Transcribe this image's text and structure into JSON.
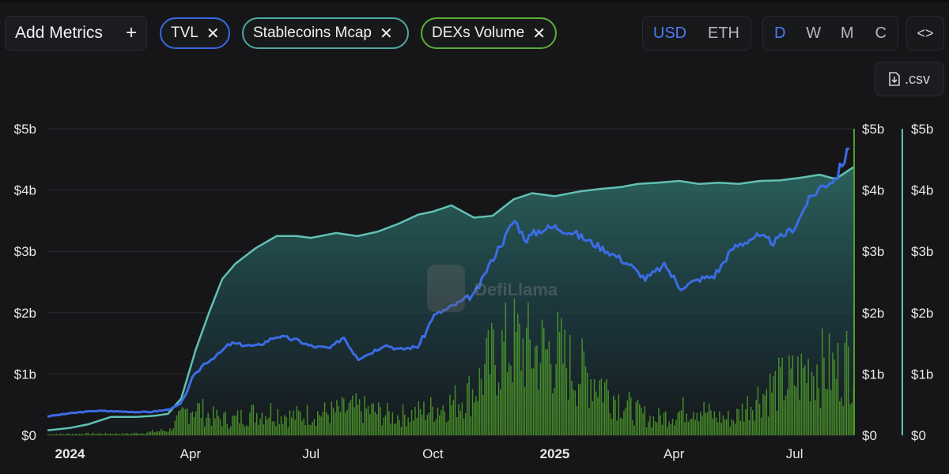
{
  "toolbar": {
    "add_metrics_label": "Add Metrics",
    "add_icon": "plus-icon",
    "chips": [
      {
        "label": "TVL",
        "color": "#3a68e0",
        "close_icon": "close-icon"
      },
      {
        "label": "Stablecoins Mcap",
        "color": "#4fa9a2",
        "close_icon": "close-icon"
      },
      {
        "label": "DEXs Volume",
        "color": "#5cae3a",
        "close_icon": "close-icon"
      }
    ],
    "currency": {
      "options": [
        "USD",
        "ETH"
      ],
      "selected": "USD"
    },
    "granularity": {
      "options": [
        "D",
        "W",
        "M",
        "C"
      ],
      "selected": "D"
    },
    "embed_icon": "code-icon",
    "csv_label": ".csv",
    "csv_icon": "download-file-icon"
  },
  "watermark": "DefiLlama",
  "colors": {
    "background": "#161618",
    "tvl": "#3c6ce6",
    "stablecoins": "#62c0b4",
    "dex": "#4f9e2c",
    "accent": "#4b7bf5"
  },
  "chart_data": {
    "type": "line",
    "x_ticks": [
      "2024",
      "Apr",
      "Jul",
      "Oct",
      "2025",
      "Apr",
      "Jul"
    ],
    "x_tick_bold": [
      true,
      false,
      false,
      false,
      true,
      false,
      false
    ],
    "y_left_ticks": [
      "$5b",
      "$4b",
      "$3b",
      "$2b",
      "$1b",
      "$0"
    ],
    "y_right_ticks": [
      "$5b",
      "$4b",
      "$3b",
      "$2b",
      "$1b",
      "$0"
    ],
    "y_right2_ticks": [
      "$5b",
      "$4b",
      "$3b",
      "$2b",
      "$1b",
      "$0"
    ],
    "ylim": [
      0,
      5
    ],
    "x_range": [
      "2023-12-15",
      "2025-08-15"
    ],
    "grid": true,
    "series": [
      {
        "name": "TVL",
        "kind": "line",
        "x": [
          "2023-12-15",
          "2024-01-01",
          "2024-01-20",
          "2024-02-05",
          "2024-02-20",
          "2024-03-01",
          "2024-03-15",
          "2024-03-25",
          "2024-04-01",
          "2024-04-10",
          "2024-04-20",
          "2024-05-01",
          "2024-05-20",
          "2024-06-05",
          "2024-06-20",
          "2024-07-01",
          "2024-07-15",
          "2024-07-25",
          "2024-08-05",
          "2024-08-15",
          "2024-08-25",
          "2024-09-05",
          "2024-09-20",
          "2024-10-01",
          "2024-10-15",
          "2024-11-01",
          "2024-11-15",
          "2024-12-01",
          "2024-12-10",
          "2024-12-20",
          "2025-01-01",
          "2025-01-15",
          "2025-02-01",
          "2025-02-10",
          "2025-02-25",
          "2025-03-10",
          "2025-03-25",
          "2025-04-05",
          "2025-04-20",
          "2025-05-01",
          "2025-05-15",
          "2025-06-01",
          "2025-06-15",
          "2025-07-01",
          "2025-07-10",
          "2025-07-20",
          "2025-08-01",
          "2025-08-10",
          "2025-08-15"
        ],
        "values": [
          0.31,
          0.36,
          0.4,
          0.39,
          0.38,
          0.38,
          0.42,
          0.52,
          0.9,
          1.15,
          1.3,
          1.5,
          1.45,
          1.62,
          1.55,
          1.45,
          1.42,
          1.6,
          1.25,
          1.35,
          1.48,
          1.4,
          1.45,
          1.95,
          2.1,
          2.3,
          2.9,
          3.5,
          3.2,
          3.35,
          3.4,
          3.3,
          3.1,
          3.0,
          2.8,
          2.55,
          2.78,
          2.4,
          2.55,
          2.6,
          3.05,
          3.25,
          3.15,
          3.4,
          3.8,
          4.05,
          4.2,
          4.65,
          4.9
        ]
      },
      {
        "name": "Stablecoins Mcap",
        "kind": "area",
        "x": [
          "2023-12-15",
          "2024-01-01",
          "2024-01-15",
          "2024-02-01",
          "2024-02-20",
          "2024-03-05",
          "2024-03-15",
          "2024-03-25",
          "2024-04-05",
          "2024-04-15",
          "2024-04-25",
          "2024-05-05",
          "2024-05-20",
          "2024-06-05",
          "2024-06-20",
          "2024-07-01",
          "2024-07-20",
          "2024-08-05",
          "2024-08-20",
          "2024-09-05",
          "2024-09-20",
          "2024-10-01",
          "2024-10-15",
          "2024-11-01",
          "2024-11-15",
          "2024-12-01",
          "2024-12-15",
          "2025-01-01",
          "2025-01-20",
          "2025-02-05",
          "2025-02-20",
          "2025-03-05",
          "2025-03-20",
          "2025-04-05",
          "2025-04-20",
          "2025-05-05",
          "2025-05-20",
          "2025-06-05",
          "2025-06-20",
          "2025-07-05",
          "2025-07-20",
          "2025-08-01",
          "2025-08-15"
        ],
        "values": [
          0.08,
          0.12,
          0.18,
          0.3,
          0.3,
          0.32,
          0.35,
          0.6,
          1.4,
          2.0,
          2.55,
          2.8,
          3.05,
          3.25,
          3.25,
          3.22,
          3.3,
          3.25,
          3.32,
          3.45,
          3.6,
          3.65,
          3.75,
          3.55,
          3.58,
          3.85,
          3.95,
          3.9,
          3.98,
          4.02,
          4.05,
          4.1,
          4.12,
          4.15,
          4.1,
          4.12,
          4.1,
          4.15,
          4.16,
          4.2,
          4.25,
          4.18,
          4.38
        ]
      },
      {
        "name": "DEXs Volume",
        "kind": "bar",
        "x": [
          "2023-12-15",
          "2024-01-15",
          "2024-02-15",
          "2024-03-01",
          "2024-03-15",
          "2024-04-01",
          "2024-04-15",
          "2024-05-01",
          "2024-05-15",
          "2024-06-01",
          "2024-06-15",
          "2024-07-01",
          "2024-07-15",
          "2024-08-01",
          "2024-08-15",
          "2024-09-01",
          "2024-09-15",
          "2024-10-01",
          "2024-10-15",
          "2024-11-01",
          "2024-11-15",
          "2024-12-01",
          "2024-12-15",
          "2025-01-01",
          "2025-01-15",
          "2025-02-01",
          "2025-02-15",
          "2025-03-01",
          "2025-03-15",
          "2025-04-01",
          "2025-04-15",
          "2025-05-01",
          "2025-05-15",
          "2025-06-01",
          "2025-06-15",
          "2025-07-01",
          "2025-07-15",
          "2025-08-01",
          "2025-08-15"
        ],
        "values": [
          0.02,
          0.03,
          0.03,
          0.06,
          0.1,
          0.55,
          0.35,
          0.28,
          0.4,
          0.45,
          0.35,
          0.4,
          0.42,
          0.5,
          0.45,
          0.35,
          0.4,
          0.5,
          0.6,
          0.85,
          1.45,
          1.7,
          1.55,
          1.55,
          1.2,
          1.05,
          0.7,
          0.45,
          0.3,
          0.4,
          0.55,
          0.35,
          0.3,
          0.7,
          0.9,
          1.05,
          1.3,
          1.2,
          1.5
        ]
      }
    ]
  }
}
